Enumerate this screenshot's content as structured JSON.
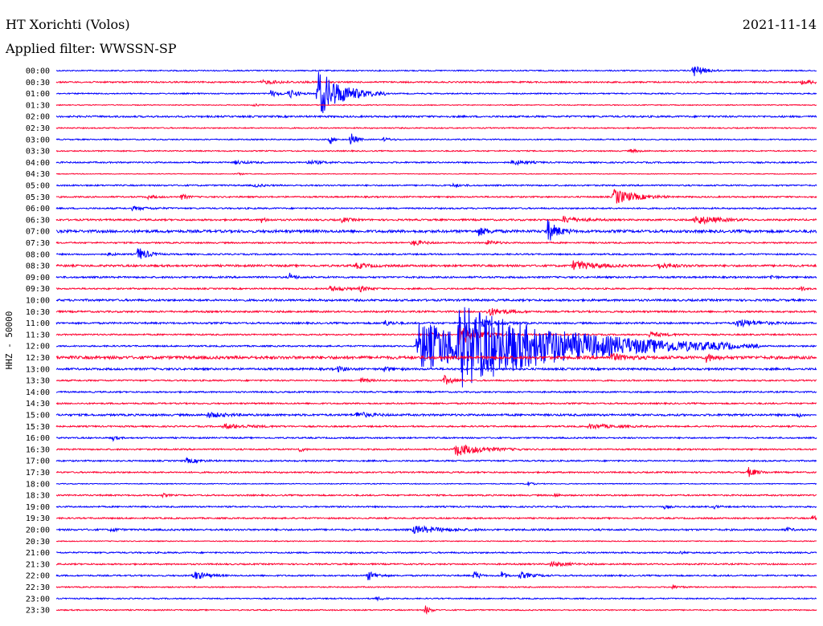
{
  "chart_data": {
    "type": "line",
    "title": "HT Xorichti (Volos)",
    "date": "2021-11-14",
    "subtitle": "Applied filter: WWSSN-SP",
    "ylabel": "HHZ - 50000",
    "row_interval_minutes": 30,
    "series_colors": [
      "#0000ff",
      "#ff0030"
    ],
    "rows": [
      {
        "label": "00:00",
        "noise": 0.8,
        "events": [
          {
            "t": 0.837,
            "amp": 9,
            "dur": 0.012
          }
        ]
      },
      {
        "label": "00:30",
        "noise": 1.0,
        "events": [
          {
            "t": 0.27,
            "amp": 2,
            "dur": 0.03
          },
          {
            "t": 0.98,
            "amp": 2,
            "dur": 0.03
          }
        ]
      },
      {
        "label": "01:00",
        "noise": 0.8,
        "events": [
          {
            "t": 0.282,
            "amp": 4,
            "dur": 0.01
          },
          {
            "t": 0.306,
            "amp": 6,
            "dur": 0.01
          },
          {
            "t": 0.344,
            "amp": 30,
            "dur": 0.03
          }
        ]
      },
      {
        "label": "01:30",
        "noise": 0.6,
        "events": [
          {
            "t": 0.26,
            "amp": 2,
            "dur": 0.005
          }
        ]
      },
      {
        "label": "02:00",
        "noise": 1.2,
        "events": []
      },
      {
        "label": "02:30",
        "noise": 0.8,
        "events": []
      },
      {
        "label": "03:00",
        "noise": 0.8,
        "events": [
          {
            "t": 0.36,
            "amp": 7,
            "dur": 0.004
          },
          {
            "t": 0.387,
            "amp": 10,
            "dur": 0.006
          },
          {
            "t": 0.43,
            "amp": 2,
            "dur": 0.01
          }
        ]
      },
      {
        "label": "03:30",
        "noise": 0.8,
        "events": [
          {
            "t": 0.755,
            "amp": 2,
            "dur": 0.01
          }
        ]
      },
      {
        "label": "04:00",
        "noise": 1.0,
        "events": [
          {
            "t": 0.235,
            "amp": 2,
            "dur": 0.015
          },
          {
            "t": 0.33,
            "amp": 2,
            "dur": 0.02
          },
          {
            "t": 0.6,
            "amp": 3,
            "dur": 0.015
          }
        ]
      },
      {
        "label": "04:30",
        "noise": 0.5,
        "events": [
          {
            "t": 0.24,
            "amp": 2,
            "dur": 0.004
          }
        ]
      },
      {
        "label": "05:00",
        "noise": 1.0,
        "events": [
          {
            "t": 0.26,
            "amp": 2,
            "dur": 0.01
          },
          {
            "t": 0.52,
            "amp": 2,
            "dur": 0.01
          }
        ]
      },
      {
        "label": "05:30",
        "noise": 1.0,
        "events": [
          {
            "t": 0.12,
            "amp": 2,
            "dur": 0.01
          },
          {
            "t": 0.165,
            "amp": 4,
            "dur": 0.006
          },
          {
            "t": 0.733,
            "amp": 10,
            "dur": 0.025
          }
        ]
      },
      {
        "label": "06:00",
        "noise": 1.0,
        "events": [
          {
            "t": 0.1,
            "amp": 2,
            "dur": 0.02
          }
        ]
      },
      {
        "label": "06:30",
        "noise": 1.2,
        "events": [
          {
            "t": 0.27,
            "amp": 3,
            "dur": 0.005
          },
          {
            "t": 0.375,
            "amp": 3,
            "dur": 0.01
          },
          {
            "t": 0.667,
            "amp": 4,
            "dur": 0.02
          },
          {
            "t": 0.84,
            "amp": 6,
            "dur": 0.025
          }
        ]
      },
      {
        "label": "07:00",
        "noise": 1.8,
        "events": [
          {
            "t": 0.555,
            "amp": 5,
            "dur": 0.012
          },
          {
            "t": 0.646,
            "amp": 14,
            "dur": 0.012
          }
        ]
      },
      {
        "label": "07:30",
        "noise": 1.0,
        "events": [
          {
            "t": 0.468,
            "amp": 4,
            "dur": 0.012
          },
          {
            "t": 0.567,
            "amp": 3,
            "dur": 0.01
          }
        ]
      },
      {
        "label": "08:00",
        "noise": 1.0,
        "events": [
          {
            "t": 0.069,
            "amp": 3,
            "dur": 0.005
          },
          {
            "t": 0.107,
            "amp": 9,
            "dur": 0.012
          }
        ]
      },
      {
        "label": "08:30",
        "noise": 1.4,
        "events": [
          {
            "t": 0.395,
            "amp": 3,
            "dur": 0.015
          },
          {
            "t": 0.68,
            "amp": 6,
            "dur": 0.025
          },
          {
            "t": 0.79,
            "amp": 3,
            "dur": 0.02
          }
        ]
      },
      {
        "label": "09:00",
        "noise": 1.2,
        "events": [
          {
            "t": 0.307,
            "amp": 5,
            "dur": 0.006
          },
          {
            "t": 0.94,
            "amp": 3,
            "dur": 0.005
          }
        ]
      },
      {
        "label": "09:30",
        "noise": 1.0,
        "events": [
          {
            "t": 0.36,
            "amp": 3,
            "dur": 0.02
          },
          {
            "t": 0.4,
            "amp": 3,
            "dur": 0.01
          },
          {
            "t": 0.98,
            "amp": 3,
            "dur": 0.004
          }
        ]
      },
      {
        "label": "10:00",
        "noise": 1.4,
        "events": []
      },
      {
        "label": "10:30",
        "noise": 1.2,
        "events": [
          {
            "t": 0.568,
            "amp": 5,
            "dur": 0.02
          }
        ]
      },
      {
        "label": "11:00",
        "noise": 1.2,
        "events": [
          {
            "t": 0.43,
            "amp": 4,
            "dur": 0.01
          },
          {
            "t": 0.56,
            "amp": 4,
            "dur": 0.02
          },
          {
            "t": 0.895,
            "amp": 5,
            "dur": 0.025
          }
        ]
      },
      {
        "label": "11:30",
        "noise": 1.0,
        "events": [
          {
            "t": 0.49,
            "amp": 4,
            "dur": 0.01
          },
          {
            "t": 0.53,
            "amp": 14,
            "dur": 0.02
          },
          {
            "t": 0.78,
            "amp": 3,
            "dur": 0.02
          }
        ]
      },
      {
        "label": "12:00",
        "noise": 1.0,
        "events": [
          {
            "t": 0.475,
            "amp": 30,
            "dur": 0.15
          },
          {
            "t": 0.53,
            "amp": 32,
            "dur": 0.12
          }
        ]
      },
      {
        "label": "12:30",
        "noise": 2.0,
        "events": [
          {
            "t": 0.73,
            "amp": 4,
            "dur": 0.02
          },
          {
            "t": 0.855,
            "amp": 5,
            "dur": 0.01
          }
        ]
      },
      {
        "label": "13:00",
        "noise": 1.4,
        "events": [
          {
            "t": 0.37,
            "amp": 3,
            "dur": 0.01
          },
          {
            "t": 0.43,
            "amp": 3,
            "dur": 0.01
          }
        ]
      },
      {
        "label": "13:30",
        "noise": 1.0,
        "events": [
          {
            "t": 0.4,
            "amp": 3,
            "dur": 0.01
          },
          {
            "t": 0.51,
            "amp": 6,
            "dur": 0.01
          }
        ]
      },
      {
        "label": "14:00",
        "noise": 1.0,
        "events": []
      },
      {
        "label": "14:30",
        "noise": 1.0,
        "events": []
      },
      {
        "label": "15:00",
        "noise": 1.4,
        "events": [
          {
            "t": 0.2,
            "amp": 3,
            "dur": 0.02
          },
          {
            "t": 0.395,
            "amp": 4,
            "dur": 0.015
          },
          {
            "t": 0.975,
            "amp": 3,
            "dur": 0.004
          }
        ]
      },
      {
        "label": "15:30",
        "noise": 1.0,
        "events": [
          {
            "t": 0.22,
            "amp": 3,
            "dur": 0.03
          },
          {
            "t": 0.7,
            "amp": 3,
            "dur": 0.03
          }
        ]
      },
      {
        "label": "16:00",
        "noise": 1.0,
        "events": [
          {
            "t": 0.075,
            "amp": 3,
            "dur": 0.005
          }
        ]
      },
      {
        "label": "16:30",
        "noise": 1.0,
        "events": [
          {
            "t": 0.32,
            "amp": 3,
            "dur": 0.005
          },
          {
            "t": 0.525,
            "amp": 8,
            "dur": 0.03
          }
        ]
      },
      {
        "label": "17:00",
        "noise": 1.0,
        "events": [
          {
            "t": 0.17,
            "amp": 3,
            "dur": 0.015
          }
        ]
      },
      {
        "label": "17:30",
        "noise": 1.0,
        "events": [
          {
            "t": 0.91,
            "amp": 6,
            "dur": 0.01
          }
        ]
      },
      {
        "label": "18:00",
        "noise": 0.6,
        "events": [
          {
            "t": 0.617,
            "amp": 4,
            "dur": 0.006
          }
        ]
      },
      {
        "label": "18:30",
        "noise": 1.0,
        "events": [
          {
            "t": 0.14,
            "amp": 2,
            "dur": 0.005
          },
          {
            "t": 0.655,
            "amp": 3,
            "dur": 0.005
          }
        ]
      },
      {
        "label": "19:00",
        "noise": 1.0,
        "events": [
          {
            "t": 0.8,
            "amp": 2,
            "dur": 0.005
          },
          {
            "t": 0.865,
            "amp": 2,
            "dur": 0.005
          }
        ]
      },
      {
        "label": "19:30",
        "noise": 1.0,
        "events": [
          {
            "t": 0.995,
            "amp": 3,
            "dur": 0.006
          }
        ]
      },
      {
        "label": "20:00",
        "noise": 1.2,
        "events": [
          {
            "t": 0.073,
            "amp": 3,
            "dur": 0.005
          },
          {
            "t": 0.47,
            "amp": 5,
            "dur": 0.03
          },
          {
            "t": 0.96,
            "amp": 3,
            "dur": 0.006
          }
        ]
      },
      {
        "label": "20:30",
        "noise": 0.6,
        "events": []
      },
      {
        "label": "21:00",
        "noise": 1.0,
        "events": [
          {
            "t": 0.82,
            "amp": 2,
            "dur": 0.005
          }
        ]
      },
      {
        "label": "21:30",
        "noise": 1.0,
        "events": [
          {
            "t": 0.65,
            "amp": 3,
            "dur": 0.02
          }
        ]
      },
      {
        "label": "22:00",
        "noise": 1.0,
        "events": [
          {
            "t": 0.18,
            "amp": 6,
            "dur": 0.015
          },
          {
            "t": 0.41,
            "amp": 6,
            "dur": 0.01
          },
          {
            "t": 0.55,
            "amp": 7,
            "dur": 0.005
          },
          {
            "t": 0.585,
            "amp": 6,
            "dur": 0.005
          },
          {
            "t": 0.61,
            "amp": 4,
            "dur": 0.015
          }
        ]
      },
      {
        "label": "22:30",
        "noise": 0.8,
        "events": [
          {
            "t": 0.81,
            "amp": 2,
            "dur": 0.01
          }
        ]
      },
      {
        "label": "23:00",
        "noise": 0.8,
        "events": [
          {
            "t": 0.42,
            "amp": 2,
            "dur": 0.01
          }
        ]
      },
      {
        "label": "23:30",
        "noise": 0.8,
        "events": [
          {
            "t": 0.485,
            "amp": 6,
            "dur": 0.006
          }
        ]
      }
    ]
  }
}
